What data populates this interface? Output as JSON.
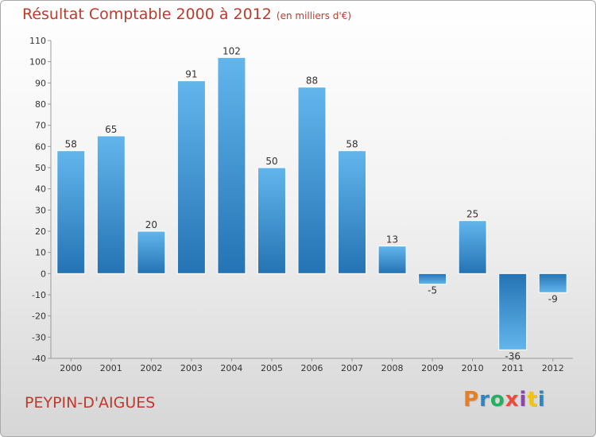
{
  "header": {
    "title": "Résultat Comptable 2000 à 2012",
    "subtitle": "(en milliers d'€)"
  },
  "footer": {
    "commune": "PEYPIN-D'AIGUES",
    "logo_letters": [
      "P",
      "r",
      "o",
      "x",
      "i",
      "t",
      "i"
    ],
    "logo_colors": [
      "#e67e22",
      "#2e86c1",
      "#27ae60",
      "#e74c3c",
      "#8e44ad",
      "#f1c40f",
      "#2e86c1"
    ]
  },
  "chart_data": {
    "type": "bar",
    "title": "Résultat Comptable 2000 à 2012",
    "subtitle": "(en milliers d'€)",
    "categories": [
      "2000",
      "2001",
      "2002",
      "2003",
      "2004",
      "2005",
      "2006",
      "2007",
      "2008",
      "2009",
      "2010",
      "2011",
      "2012"
    ],
    "values": [
      58,
      65,
      20,
      91,
      102,
      50,
      88,
      58,
      13,
      -5,
      25,
      -36,
      -9
    ],
    "value_labels": [
      "58",
      "65",
      "20",
      "91",
      "102",
      "50",
      "88",
      "58",
      "13",
      "-5",
      "25",
      "-36",
      "-9"
    ],
    "xlabel": "",
    "ylabel": "",
    "ylim": [
      -40,
      110
    ],
    "yticks": [
      -40,
      -30,
      -20,
      -10,
      0,
      10,
      20,
      30,
      40,
      50,
      60,
      70,
      80,
      90,
      100,
      110
    ],
    "ytick_labels": [
      "-40",
      "-30",
      "-20",
      "-10",
      "0",
      "10",
      "20",
      "30",
      "40",
      "50",
      "60",
      "70",
      "80",
      "90",
      "100",
      "110"
    ],
    "grid": false,
    "colors": {
      "bar_light": "#5fb3ea",
      "bar_dark": "#2575b6",
      "axis": "#999999",
      "text": "#333333"
    }
  }
}
